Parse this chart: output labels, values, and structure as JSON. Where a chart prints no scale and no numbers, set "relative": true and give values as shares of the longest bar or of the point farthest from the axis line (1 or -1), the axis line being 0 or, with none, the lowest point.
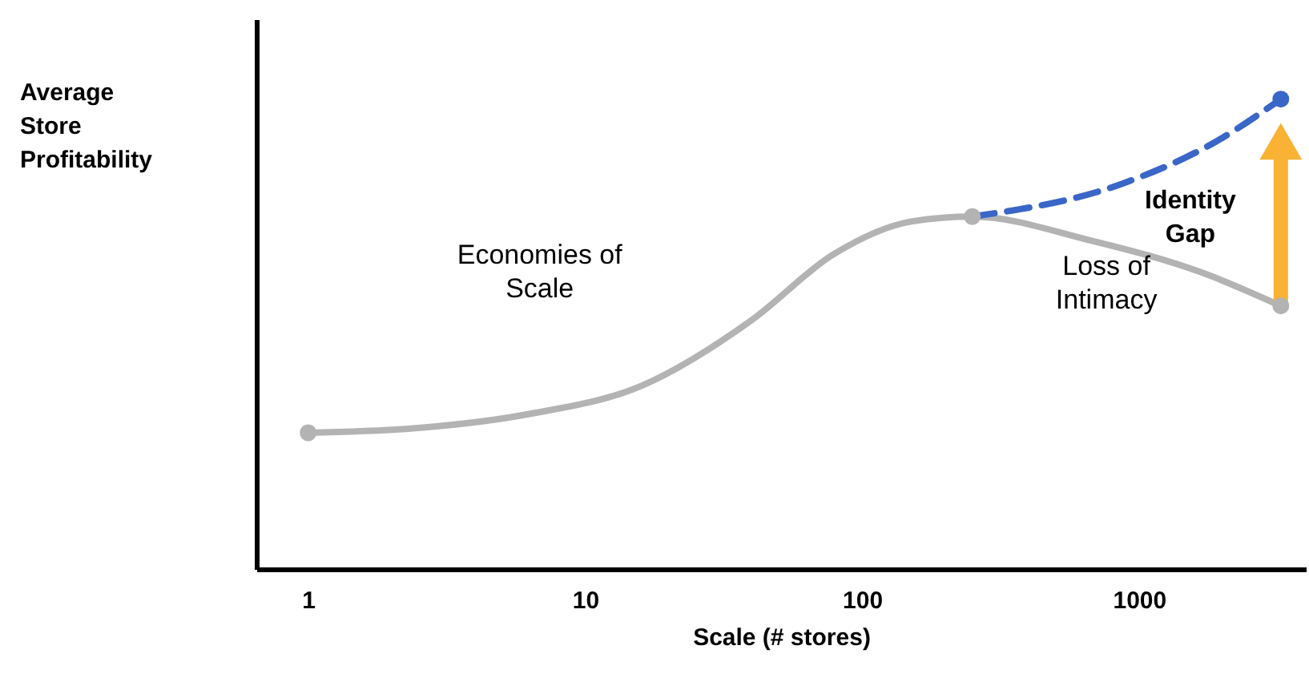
{
  "chart_data": {
    "type": "line",
    "relative": true,
    "log": "x",
    "xlabel": "Scale (# stores)",
    "ylabel": "Average Store Profitability",
    "xlim": [
      0.65,
      4000
    ],
    "xticks": [
      1,
      10,
      100,
      1000
    ],
    "grid": false,
    "marker": "none",
    "series": [
      {
        "color": "#b3b3b3",
        "line_style": "solid",
        "x": [
          1,
          2.5,
          6.3,
          16,
          40,
          79,
          152,
          250,
          660,
          1700,
          3250
        ],
        "values": [
          0.29,
          0.3,
          0.33,
          0.39,
          0.53,
          0.67,
          0.74,
          0.75,
          0.7,
          0.63,
          0.56
        ]
      },
      {
        "color": "#3a66c8",
        "line_style": "dashed",
        "x": [
          250,
          870,
          1900,
          3250
        ],
        "values": [
          0.75,
          0.82,
          0.91,
          1.0
        ]
      },
      {
        "color": "#f9b233",
        "line_style": "solid",
        "marker": "triangle",
        "x": [
          3250,
          3250
        ],
        "values": [
          0.56,
          0.91
        ]
      },
      {
        "type": "scatter",
        "color": "#b3b3b3",
        "marker": "circle",
        "x": [
          1,
          250,
          3250
        ],
        "values": [
          0.29,
          0.75,
          0.56
        ]
      },
      {
        "type": "scatter",
        "color": "#3a66c8",
        "marker": "circle",
        "x": [
          3250
        ],
        "values": [
          1.0
        ]
      }
    ],
    "annotations": [
      "Economies of\nScale",
      "Loss of\nIntimacy",
      "Identity\nGap"
    ]
  }
}
